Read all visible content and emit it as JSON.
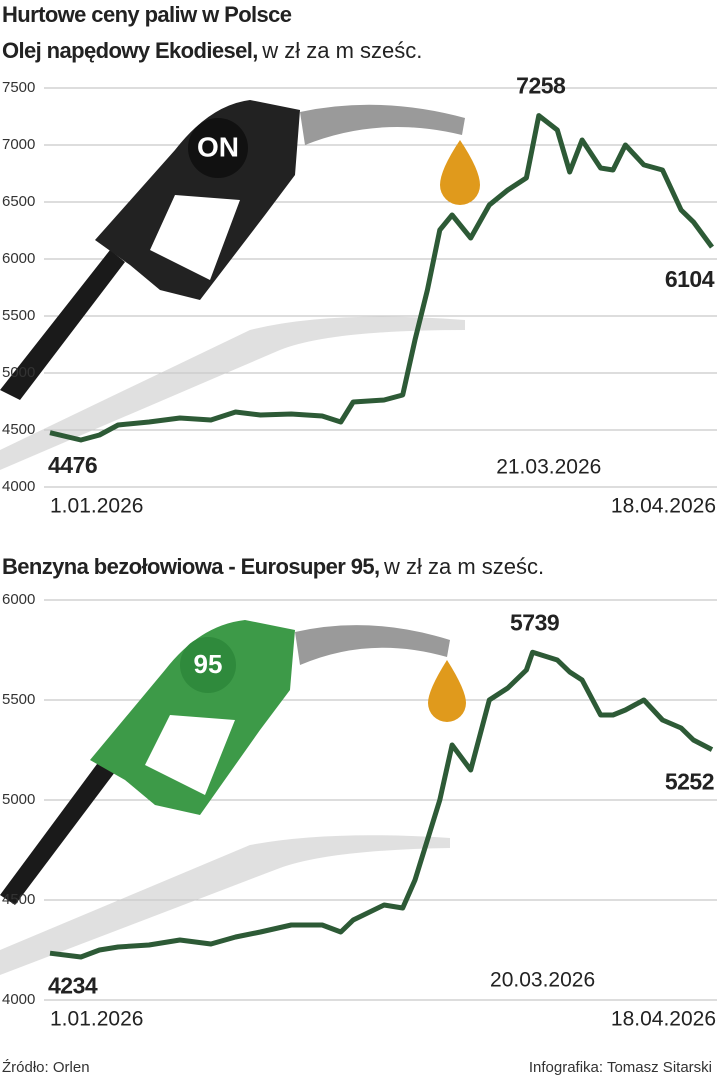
{
  "title": "Hurtowe ceny paliw w Polsce",
  "chart_data": [
    {
      "type": "line",
      "title": "Olej napędowy Ekodiesel,",
      "subtitle": "w zł za m sześc.",
      "pump_label": "ON",
      "color": "#2d5a36",
      "x": [
        "2026-01-01",
        "2026-01-06",
        "2026-01-09",
        "2026-01-12",
        "2026-01-17",
        "2026-01-22",
        "2026-01-27",
        "2026-01-31",
        "2026-02-04",
        "2026-02-09",
        "2026-02-14",
        "2026-02-17",
        "2026-02-19",
        "2026-02-24",
        "2026-02-27",
        "2026-03-01",
        "2026-03-03",
        "2026-03-05",
        "2026-03-07",
        "2026-03-10",
        "2026-03-13",
        "2026-03-16",
        "2026-03-19",
        "2026-03-21",
        "2026-03-24",
        "2026-03-26",
        "2026-03-28",
        "2026-03-31",
        "2026-04-02",
        "2026-04-04",
        "2026-04-07",
        "2026-04-10",
        "2026-04-13",
        "2026-04-15",
        "2026-04-18"
      ],
      "values": [
        4476,
        4412,
        4456,
        4544,
        4570,
        4605,
        4588,
        4658,
        4632,
        4640,
        4623,
        4570,
        4746,
        4763,
        4807,
        5290,
        5728,
        6254,
        6386,
        6184,
        6474,
        6605,
        6711,
        7258,
        7132,
        6763,
        7044,
        6798,
        6781,
        7000,
        6825,
        6781,
        6430,
        6325,
        6104
      ],
      "xlim": [
        "2026-01-01",
        "2026-04-18"
      ],
      "xticks": [
        {
          "value": "2026-01-01",
          "label": "1.01.2026"
        },
        {
          "value": "2026-03-21",
          "label": "21.03.2026"
        },
        {
          "value": "2026-04-18",
          "label": "18.04.2026"
        }
      ],
      "ylim": [
        4000,
        7500
      ],
      "yticks": [
        4000,
        4500,
        5000,
        5500,
        6000,
        6500,
        7000,
        7500
      ],
      "grid": true
    },
    {
      "type": "line",
      "title": "Benzyna bezołowiowa - Eurosuper 95,",
      "subtitle": "w zł za m sześc.",
      "pump_label": "95",
      "color": "#2d5a36",
      "x": [
        "2026-01-01",
        "2026-01-06",
        "2026-01-09",
        "2026-01-12",
        "2026-01-17",
        "2026-01-22",
        "2026-01-27",
        "2026-01-31",
        "2026-02-04",
        "2026-02-09",
        "2026-02-14",
        "2026-02-17",
        "2026-02-19",
        "2026-02-24",
        "2026-02-27",
        "2026-03-01",
        "2026-03-03",
        "2026-03-05",
        "2026-03-07",
        "2026-03-10",
        "2026-03-13",
        "2026-03-16",
        "2026-03-19",
        "2026-03-20",
        "2026-03-24",
        "2026-03-26",
        "2026-03-28",
        "2026-03-31",
        "2026-04-02",
        "2026-04-04",
        "2026-04-07",
        "2026-04-10",
        "2026-04-13",
        "2026-04-15",
        "2026-04-18"
      ],
      "values": [
        4234,
        4215,
        4250,
        4265,
        4275,
        4300,
        4280,
        4315,
        4340,
        4375,
        4375,
        4340,
        4400,
        4475,
        4460,
        4600,
        4800,
        5000,
        5275,
        5150,
        5500,
        5560,
        5650,
        5739,
        5700,
        5640,
        5600,
        5425,
        5425,
        5450,
        5500,
        5400,
        5360,
        5300,
        5252
      ],
      "xlim": [
        "2026-01-01",
        "2026-04-18"
      ],
      "xticks": [
        {
          "value": "2026-01-01",
          "label": "1.01.2026"
        },
        {
          "value": "2026-03-20",
          "label": "20.03.2026"
        },
        {
          "value": "2026-04-18",
          "label": "18.04.2026"
        }
      ],
      "ylim": [
        4000,
        6000
      ],
      "yticks": [
        4000,
        4500,
        5000,
        5500,
        6000
      ],
      "grid": true
    }
  ],
  "footer": {
    "source": "Źródło: Orlen",
    "credit": "Infografika: Tomasz Sitarski"
  }
}
